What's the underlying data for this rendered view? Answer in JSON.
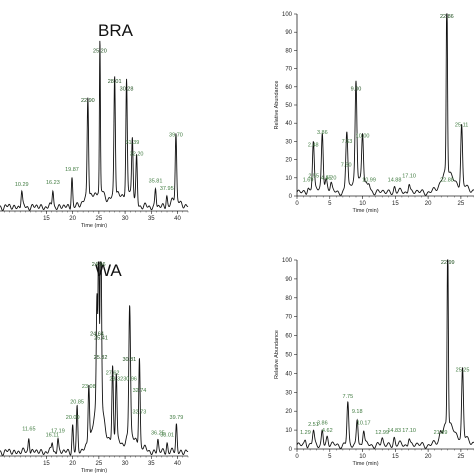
{
  "chart_data": [
    {
      "type": "line",
      "panel_label": "BRA",
      "xlabel": "Time (min)",
      "ylabel": "",
      "xlim": [
        5,
        42
      ],
      "ylim": [
        0,
        100
      ],
      "xticks": [
        "15",
        "20",
        "25",
        "30",
        "35",
        "40"
      ],
      "yticks": [],
      "peaks": [
        {
          "t": 10.29,
          "h": 8,
          "label": "10.29"
        },
        {
          "t": 16.23,
          "h": 9,
          "label": "16.23"
        },
        {
          "t": 19.87,
          "h": 16,
          "label": "19.87"
        },
        {
          "t": 22.9,
          "h": 52,
          "label": "22.90"
        },
        {
          "t": 25.2,
          "h": 78,
          "label": "25.20"
        },
        {
          "t": 28.01,
          "h": 62,
          "label": "28.01"
        },
        {
          "t": 30.28,
          "h": 58,
          "label": "30.28"
        },
        {
          "t": 31.39,
          "h": 30,
          "label": "31.39"
        },
        {
          "t": 32.2,
          "h": 24,
          "label": "32.20"
        },
        {
          "t": 35.81,
          "h": 10,
          "label": "35.81"
        },
        {
          "t": 37.95,
          "h": 6,
          "label": "37.95"
        },
        {
          "t": 39.7,
          "h": 34,
          "label": "39.70"
        }
      ]
    },
    {
      "type": "line",
      "panel_label": "",
      "xlabel": "Time (min)",
      "ylabel": "Relative Abundance",
      "xlim": [
        0,
        27
      ],
      "ylim": [
        0,
        100
      ],
      "xticks": [
        "0",
        "5",
        "10",
        "15",
        "20",
        "25"
      ],
      "yticks": [
        "0",
        "10",
        "20",
        "30",
        "40",
        "50",
        "60",
        "70",
        "80",
        "90",
        "100"
      ],
      "peaks": [
        {
          "t": 1.69,
          "h": 3,
          "label": "1.69"
        },
        {
          "t": 2.55,
          "h": 5,
          "label": "2.55"
        },
        {
          "t": 2.48,
          "h": 22,
          "label": "2.48"
        },
        {
          "t": 3.86,
          "h": 29,
          "label": "3.86"
        },
        {
          "t": 4.45,
          "h": 4,
          "label": "4.45"
        },
        {
          "t": 5.2,
          "h": 4,
          "label": "5.20"
        },
        {
          "t": 7.5,
          "h": 11,
          "label": "7.50"
        },
        {
          "t": 7.63,
          "h": 24,
          "label": "7.63"
        },
        {
          "t": 9.0,
          "h": 53,
          "label": "9.00"
        },
        {
          "t": 10.0,
          "h": 27,
          "label": "10.00"
        },
        {
          "t": 10.99,
          "h": 3,
          "label": "10.99"
        },
        {
          "t": 14.88,
          "h": 3,
          "label": "14.88"
        },
        {
          "t": 17.1,
          "h": 5,
          "label": "17.10"
        },
        {
          "t": 22.88,
          "h": 3,
          "label": "22.88"
        },
        {
          "t": 22.86,
          "h": 99,
          "label": "22.86"
        },
        {
          "t": 25.11,
          "h": 33,
          "label": "25.11"
        }
      ]
    },
    {
      "type": "line",
      "panel_label": "WA",
      "xlabel": "Time (min)",
      "ylabel": "",
      "xlim": [
        5,
        42
      ],
      "ylim": [
        0,
        100
      ],
      "xticks": [
        "15",
        "20",
        "25",
        "30",
        "35",
        "40"
      ],
      "yticks": [],
      "peaks": [
        {
          "t": 11.65,
          "h": 8,
          "label": "11.65"
        },
        {
          "t": 16.11,
          "h": 5,
          "label": "16.11"
        },
        {
          "t": 17.19,
          "h": 7,
          "label": "17.19"
        },
        {
          "t": 20.0,
          "h": 14,
          "label": "20.00"
        },
        {
          "t": 20.85,
          "h": 22,
          "label": "20.85"
        },
        {
          "t": 23.08,
          "h": 30,
          "label": "23.08"
        },
        {
          "t": 24.96,
          "h": 98,
          "label": "24.96"
        },
        {
          "t": 24.64,
          "h": 57,
          "label": "24.64"
        },
        {
          "t": 25.41,
          "h": 55,
          "label": "25.41"
        },
        {
          "t": 25.32,
          "h": 45,
          "label": "25.32"
        },
        {
          "t": 27.62,
          "h": 37,
          "label": "27.62"
        },
        {
          "t": 28.32,
          "h": 34,
          "label": "28.32"
        },
        {
          "t": 30.81,
          "h": 44,
          "label": "30.81"
        },
        {
          "t": 30.96,
          "h": 34,
          "label": "30.96"
        },
        {
          "t": 32.74,
          "h": 28,
          "label": "32.74"
        },
        {
          "t": 32.73,
          "h": 17,
          "label": "32.73"
        },
        {
          "t": 36.25,
          "h": 6,
          "label": "36.25"
        },
        {
          "t": 38.01,
          "h": 5,
          "label": "38.01"
        },
        {
          "t": 39.79,
          "h": 14,
          "label": "39.79"
        }
      ]
    },
    {
      "type": "line",
      "panel_label": "",
      "xlabel": "Time (min)",
      "ylabel": "Relative Abundance",
      "xlim": [
        0,
        27
      ],
      "ylim": [
        0,
        100
      ],
      "xticks": [
        "0",
        "5",
        "10",
        "15",
        "20",
        "25"
      ],
      "yticks": [
        "0",
        "10",
        "20",
        "30",
        "40",
        "50",
        "60",
        "70",
        "80",
        "90",
        "100"
      ],
      "peaks": [
        {
          "t": 1.29,
          "h": 3,
          "label": "1.29"
        },
        {
          "t": 2.51,
          "h": 7,
          "label": "2.51"
        },
        {
          "t": 3.86,
          "h": 8,
          "label": "3.86"
        },
        {
          "t": 4.62,
          "h": 4,
          "label": "4.62"
        },
        {
          "t": 7.75,
          "h": 22,
          "label": "7.75"
        },
        {
          "t": 9.18,
          "h": 14,
          "label": "9.18"
        },
        {
          "t": 10.17,
          "h": 8,
          "label": "10.17"
        },
        {
          "t": 12.99,
          "h": 3,
          "label": "12.99"
        },
        {
          "t": 14.83,
          "h": 4,
          "label": "14.83"
        },
        {
          "t": 17.1,
          "h": 4,
          "label": "17.10"
        },
        {
          "t": 21.89,
          "h": 3,
          "label": "21.89"
        },
        {
          "t": 22.99,
          "h": 98,
          "label": "22.99"
        },
        {
          "t": 25.25,
          "h": 36,
          "label": "25.25"
        }
      ]
    }
  ]
}
